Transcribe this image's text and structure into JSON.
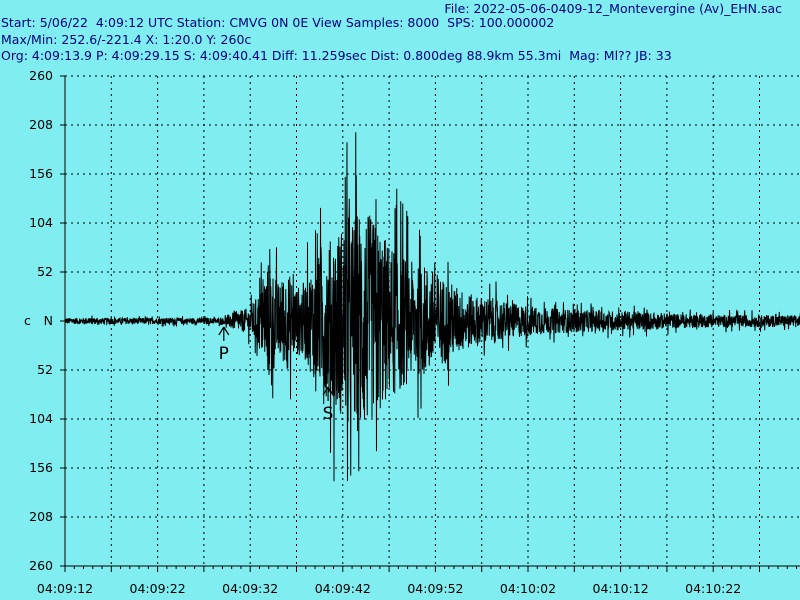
{
  "header": {
    "file": "File: 2022-05-06-0409-12_Montevergine (Av)_EHN.sac",
    "start": "Start: 5/06/22  4:09:12 UTC Station: CMVG 0N 0E View Samples: 8000  SPS: 100.000002",
    "maxmin": "Max/Min: 252.6/-221.4 X: 1:20.0 Y: 260c",
    "org": "Org: 4:09:13.9 P: 4:09:29.15 S: 4:09:40.41 Diff: 11.259sec Dist: 0.800deg 88.9km 55.3mi  Mag: Ml?? JB: 33"
  },
  "chart_data": {
    "type": "line",
    "title": "",
    "xlabel": "",
    "ylabel": "",
    "trace_color": "#000000",
    "background": "#80eef0",
    "grid": true,
    "xlim": [
      0,
      80
    ],
    "ylim": [
      -260,
      260
    ],
    "y_ticks": [
      {
        "value": 260,
        "label": "260"
      },
      {
        "value": 208,
        "label": "208"
      },
      {
        "value": 156,
        "label": "156"
      },
      {
        "value": 104,
        "label": "104"
      },
      {
        "value": 52,
        "label": "52"
      },
      {
        "value": 0,
        "label": "N"
      },
      {
        "value": -52,
        "label": "52"
      },
      {
        "value": -104,
        "label": "104"
      },
      {
        "value": -156,
        "label": "156"
      },
      {
        "value": -208,
        "label": "208"
      },
      {
        "value": -260,
        "label": "260"
      }
    ],
    "zero_prefix": "c",
    "x_ticks": [
      {
        "value": 0,
        "label": "04:09:12"
      },
      {
        "value": 10,
        "label": "04:09:22"
      },
      {
        "value": 20,
        "label": "04:09:32"
      },
      {
        "value": 30,
        "label": "04:09:42"
      },
      {
        "value": 40,
        "label": "04:09:52"
      },
      {
        "value": 50,
        "label": "04:10:02"
      },
      {
        "value": 60,
        "label": "04:10:12"
      },
      {
        "value": 70,
        "label": "04:10:22"
      }
    ],
    "picks": [
      {
        "label": "P",
        "t": 17.15
      },
      {
        "label": "S",
        "t": 28.41
      }
    ],
    "envelope": [
      [
        0,
        6
      ],
      [
        17,
        6
      ],
      [
        18,
        16
      ],
      [
        20,
        26
      ],
      [
        21,
        60
      ],
      [
        22,
        120
      ],
      [
        23,
        75
      ],
      [
        24,
        95
      ],
      [
        25,
        65
      ],
      [
        26,
        80
      ],
      [
        27,
        120
      ],
      [
        28,
        140
      ],
      [
        29,
        170
      ],
      [
        30,
        190
      ],
      [
        31,
        200
      ],
      [
        32,
        230
      ],
      [
        33,
        200
      ],
      [
        34,
        180
      ],
      [
        35,
        150
      ],
      [
        36,
        140
      ],
      [
        37,
        120
      ],
      [
        38,
        105
      ],
      [
        39,
        110
      ],
      [
        40,
        95
      ],
      [
        42,
        70
      ],
      [
        44,
        50
      ],
      [
        46,
        45
      ],
      [
        48,
        35
      ],
      [
        50,
        30
      ],
      [
        52,
        25
      ],
      [
        55,
        22
      ],
      [
        58,
        20
      ],
      [
        62,
        18
      ],
      [
        66,
        14
      ],
      [
        70,
        12
      ],
      [
        75,
        12
      ],
      [
        80,
        11
      ]
    ]
  }
}
